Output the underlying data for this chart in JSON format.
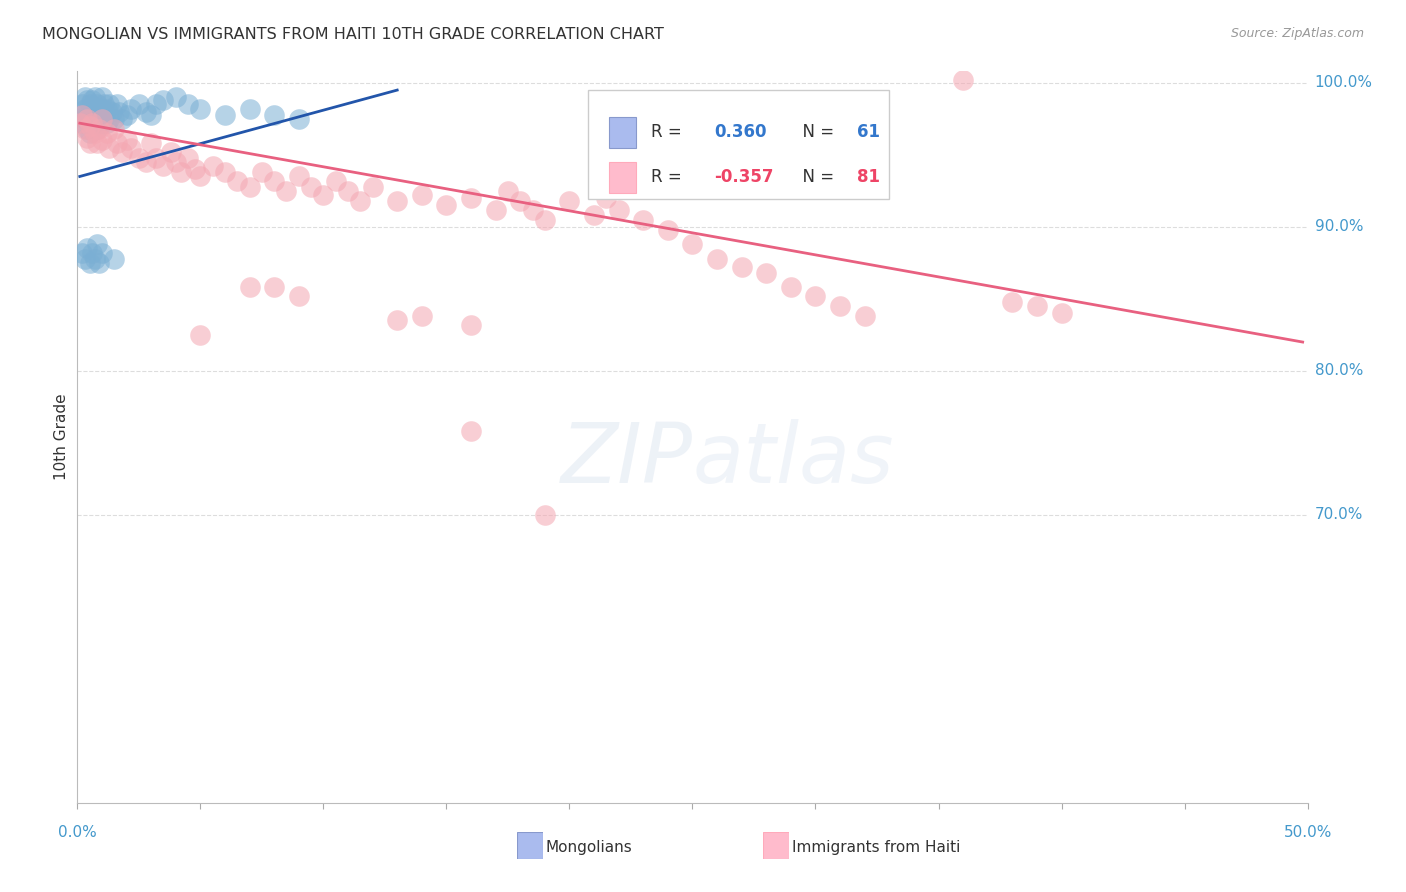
{
  "title": "MONGOLIAN VS IMMIGRANTS FROM HAITI 10TH GRADE CORRELATION CHART",
  "source": "Source: ZipAtlas.com",
  "ylabel": "10th Grade",
  "blue_color": "#7BAFD4",
  "pink_color": "#F4A7B2",
  "line_blue": "#2255AA",
  "line_pink": "#E86080",
  "watermark_zip": "ZIP",
  "watermark_atlas": "atlas",
  "xmin": 0.0,
  "xmax": 0.5,
  "ymin": 0.5,
  "ymax": 1.008,
  "ytick_vals": [
    1.0,
    0.9,
    0.8,
    0.7
  ],
  "ytick_labels": [
    "100.0%",
    "90.0%",
    "80.0%",
    "70.0%"
  ],
  "blue_x": [
    0.001,
    0.002,
    0.002,
    0.003,
    0.003,
    0.003,
    0.004,
    0.004,
    0.004,
    0.005,
    0.005,
    0.005,
    0.006,
    0.006,
    0.006,
    0.007,
    0.007,
    0.007,
    0.008,
    0.008,
    0.008,
    0.009,
    0.009,
    0.01,
    0.01,
    0.01,
    0.011,
    0.011,
    0.012,
    0.012,
    0.013,
    0.013,
    0.014,
    0.015,
    0.016,
    0.017,
    0.018,
    0.02,
    0.022,
    0.025,
    0.028,
    0.03,
    0.032,
    0.035,
    0.04,
    0.045,
    0.05,
    0.06,
    0.07,
    0.08,
    0.09,
    0.002,
    0.003,
    0.004,
    0.005,
    0.006,
    0.007,
    0.008,
    0.009,
    0.01,
    0.015
  ],
  "blue_y": [
    0.978,
    0.985,
    0.972,
    0.99,
    0.982,
    0.975,
    0.988,
    0.978,
    0.968,
    0.985,
    0.975,
    0.965,
    0.988,
    0.978,
    0.97,
    0.99,
    0.98,
    0.972,
    0.985,
    0.978,
    0.968,
    0.982,
    0.975,
    0.99,
    0.982,
    0.972,
    0.985,
    0.975,
    0.982,
    0.972,
    0.985,
    0.975,
    0.98,
    0.975,
    0.985,
    0.98,
    0.975,
    0.978,
    0.982,
    0.985,
    0.98,
    0.978,
    0.985,
    0.988,
    0.99,
    0.985,
    0.982,
    0.978,
    0.982,
    0.978,
    0.975,
    0.882,
    0.878,
    0.885,
    0.875,
    0.882,
    0.878,
    0.888,
    0.875,
    0.882,
    0.878
  ],
  "pink_x": [
    0.001,
    0.002,
    0.003,
    0.004,
    0.004,
    0.005,
    0.005,
    0.006,
    0.007,
    0.008,
    0.009,
    0.01,
    0.01,
    0.012,
    0.013,
    0.015,
    0.016,
    0.018,
    0.02,
    0.022,
    0.025,
    0.028,
    0.03,
    0.032,
    0.035,
    0.038,
    0.04,
    0.042,
    0.045,
    0.048,
    0.05,
    0.055,
    0.06,
    0.065,
    0.07,
    0.075,
    0.08,
    0.085,
    0.09,
    0.095,
    0.1,
    0.105,
    0.11,
    0.115,
    0.12,
    0.13,
    0.14,
    0.15,
    0.16,
    0.17,
    0.175,
    0.18,
    0.185,
    0.19,
    0.2,
    0.21,
    0.215,
    0.22,
    0.23,
    0.24,
    0.25,
    0.26,
    0.27,
    0.28,
    0.29,
    0.3,
    0.31,
    0.32,
    0.36,
    0.38,
    0.39,
    0.4,
    0.13,
    0.14,
    0.16,
    0.07,
    0.08,
    0.09,
    0.05,
    0.16,
    0.19
  ],
  "pink_y": [
    0.972,
    0.978,
    0.968,
    0.975,
    0.962,
    0.97,
    0.958,
    0.972,
    0.965,
    0.958,
    0.968,
    0.975,
    0.96,
    0.965,
    0.955,
    0.968,
    0.958,
    0.952,
    0.96,
    0.955,
    0.948,
    0.945,
    0.958,
    0.948,
    0.942,
    0.952,
    0.945,
    0.938,
    0.948,
    0.94,
    0.935,
    0.942,
    0.938,
    0.932,
    0.928,
    0.938,
    0.932,
    0.925,
    0.935,
    0.928,
    0.922,
    0.932,
    0.925,
    0.918,
    0.928,
    0.918,
    0.922,
    0.915,
    0.92,
    0.912,
    0.925,
    0.918,
    0.912,
    0.905,
    0.918,
    0.908,
    0.92,
    0.912,
    0.905,
    0.898,
    0.888,
    0.878,
    0.872,
    0.868,
    0.858,
    0.852,
    0.845,
    0.838,
    1.002,
    0.848,
    0.845,
    0.84,
    0.835,
    0.838,
    0.832,
    0.858,
    0.858,
    0.852,
    0.825,
    0.758,
    0.7
  ],
  "blue_line_x": [
    0.001,
    0.13
  ],
  "blue_line_y": [
    0.935,
    0.995
  ],
  "pink_line_x": [
    0.001,
    0.498
  ],
  "pink_line_y": [
    0.972,
    0.82
  ]
}
